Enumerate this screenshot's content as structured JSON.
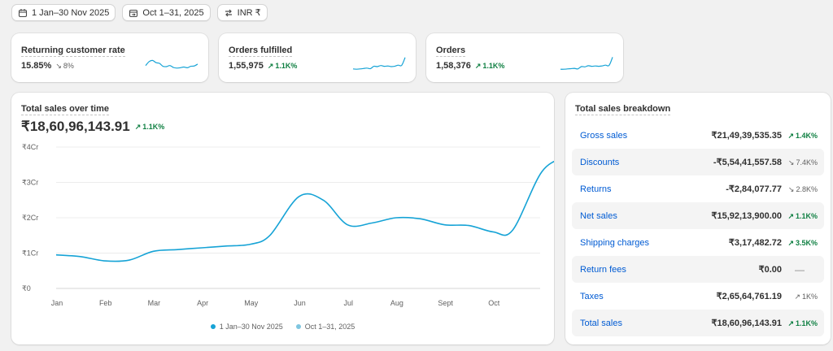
{
  "filters": {
    "date_range": "1 Jan–30 Nov 2025",
    "compare_range": "Oct 1–31, 2025",
    "currency": "INR ₹"
  },
  "metrics": [
    {
      "title": "Returning customer rate",
      "value": "15.85%",
      "delta": "8%",
      "direction": "down",
      "spark": [
        0.35,
        0.62,
        0.7,
        0.55,
        0.5,
        0.3,
        0.28,
        0.35,
        0.22,
        0.18,
        0.2,
        0.25,
        0.2,
        0.3,
        0.32,
        0.45
      ]
    },
    {
      "title": "Orders fulfilled",
      "value": "1,55,975",
      "delta": "1.1K%",
      "direction": "up",
      "spark": [
        0.12,
        0.1,
        0.12,
        0.15,
        0.18,
        0.14,
        0.3,
        0.28,
        0.35,
        0.3,
        0.32,
        0.28,
        0.3,
        0.38,
        0.36,
        0.9
      ]
    },
    {
      "title": "Orders",
      "value": "1,58,376",
      "delta": "1.1K%",
      "direction": "up",
      "spark": [
        0.1,
        0.1,
        0.12,
        0.14,
        0.16,
        0.12,
        0.28,
        0.26,
        0.34,
        0.3,
        0.32,
        0.3,
        0.33,
        0.38,
        0.36,
        0.92
      ]
    }
  ],
  "sales_chart": {
    "title": "Total sales over time",
    "total": "₹18,60,96,143.91",
    "delta": "1.1K%",
    "legend": [
      "1 Jan–30 Nov 2025",
      "Oct 1–31, 2025"
    ]
  },
  "chart_data": {
    "type": "line",
    "categories": [
      "Jan",
      "Feb",
      "Mar",
      "Apr",
      "May",
      "Jun",
      "Jul",
      "Aug",
      "Sept",
      "Oct"
    ],
    "y_ticks": [
      "₹0",
      "₹1Cr",
      "₹2Cr",
      "₹3Cr",
      "₹4Cr"
    ],
    "ylim": [
      0,
      4
    ],
    "yunit": "Cr",
    "series": [
      {
        "name": "1 Jan–30 Nov 2025",
        "color": "#16a3d6",
        "x": [
          0,
          0.5,
          1,
          1.5,
          2,
          2.5,
          3,
          3.5,
          4,
          4.4,
          5,
          5.5,
          6,
          6.5,
          7,
          7.5,
          8,
          8.5,
          9,
          9.4,
          10,
          10.5
        ],
        "values": [
          0.95,
          0.9,
          0.78,
          0.8,
          1.05,
          1.1,
          1.15,
          1.2,
          1.25,
          1.5,
          2.6,
          2.5,
          1.8,
          1.85,
          2.0,
          1.97,
          1.8,
          1.78,
          1.6,
          1.65,
          3.3,
          3.72
        ]
      },
      {
        "name": "Oct 1–31, 2025",
        "color": "#7fc6e0",
        "x": [],
        "values": []
      }
    ]
  },
  "breakdown": {
    "title": "Total sales breakdown",
    "rows": [
      {
        "label": "Gross sales",
        "value": "₹21,49,39,535.35",
        "delta": "1.4K%",
        "direction": "up"
      },
      {
        "label": "Discounts",
        "value": "-₹5,54,41,557.58",
        "delta": "7.4K%",
        "direction": "down"
      },
      {
        "label": "Returns",
        "value": "-₹2,84,077.77",
        "delta": "2.8K%",
        "direction": "down"
      },
      {
        "label": "Net sales",
        "value": "₹15,92,13,900.00",
        "delta": "1.1K%",
        "direction": "up"
      },
      {
        "label": "Shipping charges",
        "value": "₹3,17,482.72",
        "delta": "3.5K%",
        "direction": "up"
      },
      {
        "label": "Return fees",
        "value": "₹0.00",
        "delta": "—",
        "direction": "none"
      },
      {
        "label": "Taxes",
        "value": "₹2,65,64,761.19",
        "delta": "1K%",
        "direction": "down"
      },
      {
        "label": "Total sales",
        "value": "₹18,60,96,143.91",
        "delta": "1.1K%",
        "direction": "up"
      }
    ]
  }
}
